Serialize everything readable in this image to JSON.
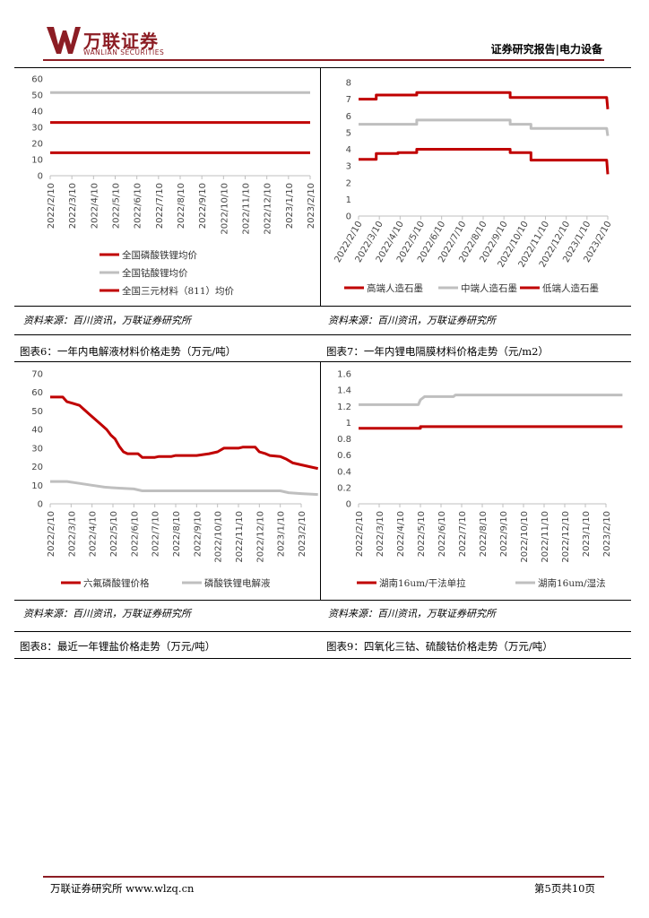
{
  "header": {
    "brand_cn": "万联证券",
    "brand_en": "WANLIAN SECURITIES",
    "report_type": "证券研究报告|电力设备",
    "brand_color": "#8c1d24"
  },
  "footer": {
    "left": "万联证券研究所 www.wlzq.cn",
    "right": "第5页共10页"
  },
  "panels": {
    "top_left": {
      "source": "资料来源：百川资讯，万联证券研究所"
    },
    "top_right": {
      "source": "资料来源：百川资讯，万联证券研究所"
    },
    "mid_left": {
      "caption": "图表6：一年内电解液材料价格走势（万元/吨）",
      "source": "资料来源：百川资讯，万联证券研究所"
    },
    "mid_right": {
      "caption": "图表7：一年内锂电隔膜材料价格走势（元/m2）",
      "source": "资料来源：百川资讯，万联证券研究所"
    },
    "bot_left": {
      "caption": "图表8：最近一年锂盐价格走势（万元/吨）"
    },
    "bot_right": {
      "caption": "图表9：四氧化三钴、硫酸钴价格走势（万元/吨）"
    }
  },
  "chart_data": [
    {
      "id": "c1",
      "type": "line",
      "x_labels": [
        "2022/2/10",
        "2022/3/10",
        "2022/4/10",
        "2022/5/10",
        "2022/6/10",
        "2022/7/10",
        "2022/8/10",
        "2022/9/10",
        "2022/10/10",
        "2022/11/10",
        "2022/12/10",
        "2023/1/10",
        "2023/2/10"
      ],
      "ylim": [
        0,
        60
      ],
      "yticks": [
        0,
        10,
        20,
        30,
        40,
        50,
        60
      ],
      "ytick_labels": [
        "0",
        "10",
        "20",
        "30",
        "40",
        "50",
        "60"
      ],
      "legend_position": "bottom",
      "legend_layout": "column",
      "series": [
        {
          "name": "全国磷酸铁锂均价",
          "color": "#c00000",
          "points": [
            [
              0,
              14.2
            ],
            [
              12,
              14.2
            ]
          ]
        },
        {
          "name": "全国钴酸锂均价",
          "color": "#bfbfbf",
          "points": [
            [
              0,
              51.5
            ],
            [
              12,
              51.5
            ]
          ]
        },
        {
          "name": "全国三元材料（811）均价",
          "color": "#c00000",
          "points": [
            [
              0,
              33
            ],
            [
              12,
              33
            ]
          ]
        }
      ]
    },
    {
      "id": "c2",
      "type": "line",
      "x_labels": [
        "2022/2/10",
        "2022/3/10",
        "2022/4/10",
        "2022/5/10",
        "2022/6/10",
        "2022/7/10",
        "2022/8/10",
        "2022/9/10",
        "2022/10/10",
        "2022/11/10",
        "2022/12/10",
        "2023/1/10",
        "2023/2/10"
      ],
      "ylim": [
        0,
        8
      ],
      "yticks": [
        0,
        1,
        2,
        3,
        4,
        5,
        6,
        7,
        8
      ],
      "ytick_labels": [
        "0",
        "1",
        "2",
        "3",
        "4",
        "5",
        "6",
        "7",
        "8"
      ],
      "legend_position": "bottom",
      "legend_layout": "row",
      "series": [
        {
          "name": "高端人造石墨",
          "color": "#c00000",
          "points": [
            [
              0,
              7.0
            ],
            [
              0.85,
              7.0
            ],
            [
              0.85,
              7.25
            ],
            [
              2.8,
              7.25
            ],
            [
              2.8,
              7.4
            ],
            [
              7.3,
              7.4
            ],
            [
              7.3,
              7.1
            ],
            [
              11.95,
              7.1
            ],
            [
              12,
              6.4
            ]
          ]
        },
        {
          "name": "中端人造石墨",
          "color": "#bfbfbf",
          "points": [
            [
              0,
              5.5
            ],
            [
              2.8,
              5.5
            ],
            [
              2.8,
              5.75
            ],
            [
              7.3,
              5.75
            ],
            [
              7.3,
              5.5
            ],
            [
              8.3,
              5.5
            ],
            [
              8.3,
              5.25
            ],
            [
              11.95,
              5.25
            ],
            [
              12,
              4.8
            ]
          ]
        },
        {
          "name": "低端人造石墨",
          "color": "#c00000",
          "points": [
            [
              0,
              3.4
            ],
            [
              0.85,
              3.4
            ],
            [
              0.85,
              3.75
            ],
            [
              1.9,
              3.75
            ],
            [
              1.9,
              3.8
            ],
            [
              2.8,
              3.8
            ],
            [
              2.8,
              4.0
            ],
            [
              7.3,
              4.0
            ],
            [
              7.3,
              3.8
            ],
            [
              8.3,
              3.8
            ],
            [
              8.3,
              3.35
            ],
            [
              11.95,
              3.35
            ],
            [
              12,
              2.5
            ]
          ]
        }
      ]
    },
    {
      "id": "c3",
      "type": "line",
      "x_labels": [
        "2022/2/10",
        "2022/3/10",
        "2022/4/10",
        "2022/5/10",
        "2022/6/10",
        "2022/7/10",
        "2022/8/10",
        "2022/9/10",
        "2022/10/10",
        "2022/11/10",
        "2022/12/10",
        "2023/1/10",
        "2023/2/10"
      ],
      "ylim": [
        0,
        70
      ],
      "yticks": [
        0,
        10,
        20,
        30,
        40,
        50,
        60,
        70
      ],
      "ytick_labels": [
        "0",
        "10",
        "20",
        "30",
        "40",
        "50",
        "60",
        "70"
      ],
      "legend_position": "bottom",
      "legend_layout": "row",
      "series": [
        {
          "name": "六氟磷酸锂价格",
          "color": "#c00000",
          "points": [
            [
              0,
              57.5
            ],
            [
              0.6,
              57.5
            ],
            [
              0.8,
              55
            ],
            [
              1.1,
              54
            ],
            [
              1.4,
              53
            ],
            [
              1.6,
              51
            ],
            [
              1.9,
              48
            ],
            [
              2.2,
              45
            ],
            [
              2.4,
              43
            ],
            [
              2.7,
              40
            ],
            [
              2.9,
              37
            ],
            [
              3.1,
              35
            ],
            [
              3.3,
              31
            ],
            [
              3.5,
              28
            ],
            [
              3.7,
              27
            ],
            [
              4.2,
              27
            ],
            [
              4.4,
              25
            ],
            [
              5.0,
              25
            ],
            [
              5.2,
              25.5
            ],
            [
              5.8,
              25.5
            ],
            [
              6.0,
              26
            ],
            [
              7.0,
              26
            ],
            [
              7.3,
              26.5
            ],
            [
              7.6,
              27
            ],
            [
              8.0,
              28
            ],
            [
              8.3,
              30
            ],
            [
              9.0,
              30
            ],
            [
              9.2,
              30.5
            ],
            [
              9.8,
              30.5
            ],
            [
              10.0,
              28
            ],
            [
              10.3,
              27
            ],
            [
              10.5,
              26
            ],
            [
              11.0,
              25.5
            ],
            [
              11.3,
              24
            ],
            [
              11.6,
              22
            ],
            [
              12.0,
              21
            ],
            [
              12.6,
              19.5
            ],
            [
              12.8,
              19
            ]
          ]
        },
        {
          "name": "磷酸铁锂电解液",
          "color": "#bfbfbf",
          "points": [
            [
              0,
              12
            ],
            [
              0.8,
              12
            ],
            [
              1.4,
              11
            ],
            [
              2.0,
              10
            ],
            [
              2.6,
              9
            ],
            [
              3.2,
              8.5
            ],
            [
              4.0,
              8
            ],
            [
              4.4,
              7
            ],
            [
              8.0,
              7
            ],
            [
              11.0,
              7
            ],
            [
              11.4,
              6
            ],
            [
              12.0,
              5.5
            ],
            [
              12.8,
              5
            ]
          ]
        }
      ]
    },
    {
      "id": "c4",
      "type": "line",
      "x_labels": [
        "2022/2/10",
        "2022/3/10",
        "2022/4/10",
        "2022/5/10",
        "2022/6/10",
        "2022/7/10",
        "2022/8/10",
        "2022/9/10",
        "2022/10/10",
        "2022/11/10",
        "2022/12/10",
        "2023/1/10",
        "2023/2/10"
      ],
      "ylim": [
        0,
        1.6
      ],
      "yticks": [
        0,
        0.2,
        0.4,
        0.6,
        0.8,
        1,
        1.2,
        1.4,
        1.6
      ],
      "ytick_labels": [
        "0",
        "0.2",
        "0.4",
        "0.6",
        "0.8",
        "1",
        "1.2",
        "1.4",
        "1.6"
      ],
      "legend_position": "bottom",
      "legend_layout": "row",
      "series": [
        {
          "name": "湖南16um/干法单拉",
          "color": "#c00000",
          "points": [
            [
              0,
              0.93
            ],
            [
              3.0,
              0.93
            ],
            [
              3.0,
              0.95
            ],
            [
              12.8,
              0.95
            ]
          ]
        },
        {
          "name": "湖南16um/湿法",
          "color": "#bfbfbf",
          "points": [
            [
              0,
              1.22
            ],
            [
              2.9,
              1.22
            ],
            [
              3.0,
              1.28
            ],
            [
              3.2,
              1.32
            ],
            [
              4.6,
              1.32
            ],
            [
              4.7,
              1.34
            ],
            [
              12.8,
              1.34
            ]
          ]
        }
      ]
    }
  ]
}
